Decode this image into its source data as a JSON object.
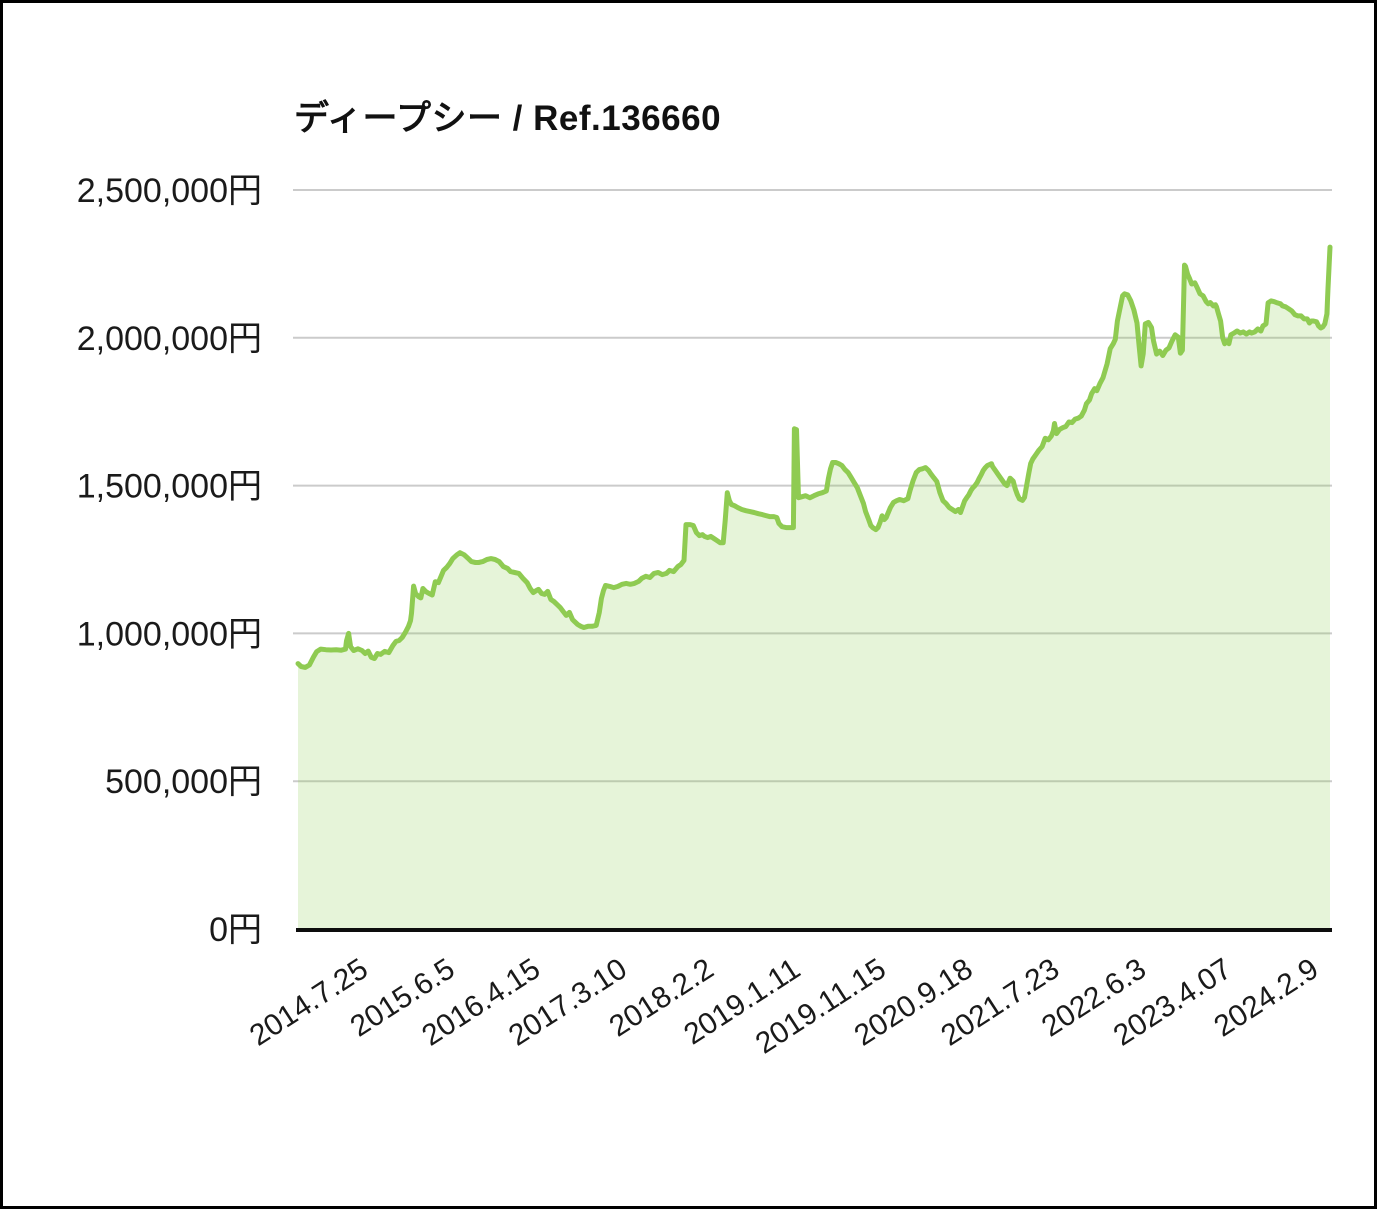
{
  "chart": {
    "title": "ディープシー / Ref.136660",
    "colors": {
      "line": "#8FCB52",
      "fill": "rgba(143,203,82,0.22)",
      "grid": "#CBCBCB",
      "axis": "#0D0D0D",
      "text": "#1A1A1A",
      "frame": "#000000",
      "background": "#FFFFFF"
    }
  },
  "chart_data": {
    "type": "area",
    "title": "ディープシー / Ref.136660",
    "unit": "JPY",
    "ylim": [
      0,
      2500000
    ],
    "grid": true,
    "legend": false,
    "y_ticks": [
      {
        "label": "2,500,000円",
        "value": 2500000
      },
      {
        "label": "2,000,000円",
        "value": 2000000
      },
      {
        "label": "1,500,000円",
        "value": 1500000
      },
      {
        "label": "1,000,000円",
        "value": 1000000
      },
      {
        "label": "500,000円",
        "value": 500000
      },
      {
        "label": "0円",
        "value": 0
      }
    ],
    "x_ticks": [
      {
        "label": "2014.7.25",
        "f": 0.062
      },
      {
        "label": "2015.6.5",
        "f": 0.146
      },
      {
        "label": "2016.4.15",
        "f": 0.229
      },
      {
        "label": "2017.3.10",
        "f": 0.313
      },
      {
        "label": "2018.2.2",
        "f": 0.397
      },
      {
        "label": "2019.1.11",
        "f": 0.481
      },
      {
        "label": "2019.11.15",
        "f": 0.564
      },
      {
        "label": "2020.9.18",
        "f": 0.648
      },
      {
        "label": "2021.7.23",
        "f": 0.732
      },
      {
        "label": "2022.6.3",
        "f": 0.816
      },
      {
        "label": "2023.4.07",
        "f": 0.899
      },
      {
        "label": "2024.2.9",
        "f": 0.983
      }
    ],
    "points_format": "[time_fraction_0_to_1, price_in_JPY]",
    "points": [
      [
        0.0,
        898000
      ],
      [
        0.003,
        888000
      ],
      [
        0.007,
        885000
      ],
      [
        0.011,
        893000
      ],
      [
        0.015,
        920000
      ],
      [
        0.018,
        938000
      ],
      [
        0.022,
        947000
      ],
      [
        0.027,
        945000
      ],
      [
        0.032,
        944000
      ],
      [
        0.037,
        945000
      ],
      [
        0.042,
        943000
      ],
      [
        0.046,
        947000
      ],
      [
        0.047,
        975000
      ],
      [
        0.049,
        1000000
      ],
      [
        0.051,
        955000
      ],
      [
        0.054,
        942000
      ],
      [
        0.058,
        948000
      ],
      [
        0.062,
        942000
      ],
      [
        0.065,
        932000
      ],
      [
        0.068,
        940000
      ],
      [
        0.071,
        919000
      ],
      [
        0.074,
        915000
      ],
      [
        0.077,
        932000
      ],
      [
        0.08,
        929000
      ],
      [
        0.084,
        939000
      ],
      [
        0.088,
        935000
      ],
      [
        0.092,
        959000
      ],
      [
        0.095,
        973000
      ],
      [
        0.098,
        976000
      ],
      [
        0.101,
        986000
      ],
      [
        0.104,
        1003000
      ],
      [
        0.107,
        1023000
      ],
      [
        0.109,
        1043000
      ],
      [
        0.11,
        1068000
      ],
      [
        0.112,
        1160000
      ],
      [
        0.114,
        1135000
      ],
      [
        0.117,
        1124000
      ],
      [
        0.119,
        1120000
      ],
      [
        0.121,
        1152000
      ],
      [
        0.124,
        1141000
      ],
      [
        0.127,
        1135000
      ],
      [
        0.13,
        1130000
      ],
      [
        0.133,
        1175000
      ],
      [
        0.136,
        1172000
      ],
      [
        0.139,
        1196000
      ],
      [
        0.141,
        1213000
      ],
      [
        0.144,
        1223000
      ],
      [
        0.147,
        1236000
      ],
      [
        0.15,
        1253000
      ],
      [
        0.154,
        1266000
      ],
      [
        0.157,
        1273000
      ],
      [
        0.161,
        1266000
      ],
      [
        0.165,
        1253000
      ],
      [
        0.168,
        1243000
      ],
      [
        0.172,
        1240000
      ],
      [
        0.175,
        1240000
      ],
      [
        0.179,
        1243000
      ],
      [
        0.183,
        1250000
      ],
      [
        0.187,
        1253000
      ],
      [
        0.191,
        1250000
      ],
      [
        0.195,
        1243000
      ],
      [
        0.199,
        1226000
      ],
      [
        0.203,
        1220000
      ],
      [
        0.206,
        1209000
      ],
      [
        0.21,
        1206000
      ],
      [
        0.214,
        1203000
      ],
      [
        0.218,
        1186000
      ],
      [
        0.222,
        1172000
      ],
      [
        0.225,
        1152000
      ],
      [
        0.228,
        1138000
      ],
      [
        0.231,
        1145000
      ],
      [
        0.233,
        1149000
      ],
      [
        0.236,
        1135000
      ],
      [
        0.239,
        1132000
      ],
      [
        0.242,
        1142000
      ],
      [
        0.245,
        1115000
      ],
      [
        0.248,
        1108000
      ],
      [
        0.251,
        1098000
      ],
      [
        0.254,
        1088000
      ],
      [
        0.257,
        1074000
      ],
      [
        0.26,
        1061000
      ],
      [
        0.263,
        1071000
      ],
      [
        0.266,
        1047000
      ],
      [
        0.268,
        1040000
      ],
      [
        0.271,
        1030000
      ],
      [
        0.274,
        1024000
      ],
      [
        0.277,
        1020000
      ],
      [
        0.281,
        1024000
      ],
      [
        0.285,
        1024000
      ],
      [
        0.289,
        1027000
      ],
      [
        0.292,
        1071000
      ],
      [
        0.294,
        1118000
      ],
      [
        0.296,
        1145000
      ],
      [
        0.298,
        1162000
      ],
      [
        0.302,
        1159000
      ],
      [
        0.306,
        1155000
      ],
      [
        0.31,
        1159000
      ],
      [
        0.314,
        1166000
      ],
      [
        0.318,
        1169000
      ],
      [
        0.322,
        1166000
      ],
      [
        0.326,
        1169000
      ],
      [
        0.33,
        1176000
      ],
      [
        0.333,
        1186000
      ],
      [
        0.337,
        1193000
      ],
      [
        0.341,
        1189000
      ],
      [
        0.345,
        1203000
      ],
      [
        0.349,
        1206000
      ],
      [
        0.353,
        1199000
      ],
      [
        0.357,
        1203000
      ],
      [
        0.36,
        1213000
      ],
      [
        0.364,
        1209000
      ],
      [
        0.368,
        1226000
      ],
      [
        0.371,
        1233000
      ],
      [
        0.374,
        1247000
      ],
      [
        0.376,
        1368000
      ],
      [
        0.38,
        1368000
      ],
      [
        0.383,
        1365000
      ],
      [
        0.386,
        1341000
      ],
      [
        0.389,
        1331000
      ],
      [
        0.392,
        1334000
      ],
      [
        0.394,
        1328000
      ],
      [
        0.397,
        1324000
      ],
      [
        0.4,
        1328000
      ],
      [
        0.403,
        1321000
      ],
      [
        0.406,
        1314000
      ],
      [
        0.409,
        1307000
      ],
      [
        0.412,
        1307000
      ],
      [
        0.414,
        1382000
      ],
      [
        0.416,
        1476000
      ],
      [
        0.418,
        1449000
      ],
      [
        0.42,
        1436000
      ],
      [
        0.423,
        1432000
      ],
      [
        0.426,
        1426000
      ],
      [
        0.43,
        1419000
      ],
      [
        0.434,
        1415000
      ],
      [
        0.438,
        1412000
      ],
      [
        0.442,
        1409000
      ],
      [
        0.446,
        1405000
      ],
      [
        0.45,
        1402000
      ],
      [
        0.453,
        1399000
      ],
      [
        0.457,
        1395000
      ],
      [
        0.461,
        1395000
      ],
      [
        0.464,
        1392000
      ],
      [
        0.466,
        1372000
      ],
      [
        0.469,
        1361000
      ],
      [
        0.473,
        1358000
      ],
      [
        0.477,
        1358000
      ],
      [
        0.48,
        1358000
      ],
      [
        0.481,
        1692000
      ],
      [
        0.483,
        1689000
      ],
      [
        0.485,
        1459000
      ],
      [
        0.488,
        1462000
      ],
      [
        0.492,
        1466000
      ],
      [
        0.496,
        1459000
      ],
      [
        0.5,
        1466000
      ],
      [
        0.504,
        1472000
      ],
      [
        0.508,
        1476000
      ],
      [
        0.512,
        1482000
      ],
      [
        0.514,
        1524000
      ],
      [
        0.516,
        1557000
      ],
      [
        0.518,
        1578000
      ],
      [
        0.521,
        1578000
      ],
      [
        0.524,
        1574000
      ],
      [
        0.527,
        1568000
      ],
      [
        0.53,
        1554000
      ],
      [
        0.533,
        1544000
      ],
      [
        0.536,
        1527000
      ],
      [
        0.539,
        1510000
      ],
      [
        0.542,
        1493000
      ],
      [
        0.545,
        1466000
      ],
      [
        0.548,
        1439000
      ],
      [
        0.55,
        1412000
      ],
      [
        0.553,
        1385000
      ],
      [
        0.555,
        1365000
      ],
      [
        0.557,
        1358000
      ],
      [
        0.56,
        1351000
      ],
      [
        0.562,
        1358000
      ],
      [
        0.564,
        1375000
      ],
      [
        0.566,
        1398000
      ],
      [
        0.568,
        1385000
      ],
      [
        0.57,
        1392000
      ],
      [
        0.572,
        1409000
      ],
      [
        0.574,
        1426000
      ],
      [
        0.577,
        1443000
      ],
      [
        0.58,
        1449000
      ],
      [
        0.583,
        1453000
      ],
      [
        0.587,
        1449000
      ],
      [
        0.591,
        1456000
      ],
      [
        0.593,
        1483000
      ],
      [
        0.596,
        1517000
      ],
      [
        0.599,
        1544000
      ],
      [
        0.602,
        1554000
      ],
      [
        0.605,
        1557000
      ],
      [
        0.608,
        1561000
      ],
      [
        0.611,
        1551000
      ],
      [
        0.613,
        1541000
      ],
      [
        0.616,
        1527000
      ],
      [
        0.619,
        1514000
      ],
      [
        0.622,
        1476000
      ],
      [
        0.625,
        1449000
      ],
      [
        0.628,
        1439000
      ],
      [
        0.631,
        1426000
      ],
      [
        0.634,
        1419000
      ],
      [
        0.637,
        1412000
      ],
      [
        0.64,
        1419000
      ],
      [
        0.642,
        1409000
      ],
      [
        0.644,
        1429000
      ],
      [
        0.646,
        1449000
      ],
      [
        0.648,
        1459000
      ],
      [
        0.65,
        1469000
      ],
      [
        0.652,
        1483000
      ],
      [
        0.654,
        1493000
      ],
      [
        0.656,
        1500000
      ],
      [
        0.658,
        1510000
      ],
      [
        0.66,
        1524000
      ],
      [
        0.662,
        1537000
      ],
      [
        0.664,
        1551000
      ],
      [
        0.666,
        1561000
      ],
      [
        0.668,
        1568000
      ],
      [
        0.67,
        1571000
      ],
      [
        0.672,
        1574000
      ],
      [
        0.673,
        1565000
      ],
      [
        0.676,
        1550000
      ],
      [
        0.679,
        1535000
      ],
      [
        0.682,
        1520000
      ],
      [
        0.685,
        1505000
      ],
      [
        0.687,
        1500000
      ],
      [
        0.69,
        1525000
      ],
      [
        0.693,
        1515000
      ],
      [
        0.695,
        1490000
      ],
      [
        0.697,
        1470000
      ],
      [
        0.699,
        1455000
      ],
      [
        0.702,
        1450000
      ],
      [
        0.704,
        1460000
      ],
      [
        0.706,
        1500000
      ],
      [
        0.708,
        1540000
      ],
      [
        0.71,
        1575000
      ],
      [
        0.712,
        1590000
      ],
      [
        0.715,
        1605000
      ],
      [
        0.718,
        1620000
      ],
      [
        0.721,
        1632000
      ],
      [
        0.724,
        1660000
      ],
      [
        0.727,
        1655000
      ],
      [
        0.73,
        1668000
      ],
      [
        0.732,
        1686000
      ],
      [
        0.733,
        1710000
      ],
      [
        0.735,
        1676000
      ],
      [
        0.738,
        1690000
      ],
      [
        0.741,
        1696000
      ],
      [
        0.744,
        1700000
      ],
      [
        0.747,
        1715000
      ],
      [
        0.75,
        1713000
      ],
      [
        0.753,
        1725000
      ],
      [
        0.756,
        1728000
      ],
      [
        0.759,
        1735000
      ],
      [
        0.762,
        1755000
      ],
      [
        0.764,
        1777000
      ],
      [
        0.767,
        1790000
      ],
      [
        0.769,
        1811000
      ],
      [
        0.772,
        1828000
      ],
      [
        0.774,
        1821000
      ],
      [
        0.777,
        1845000
      ],
      [
        0.78,
        1865000
      ],
      [
        0.784,
        1912000
      ],
      [
        0.787,
        1963000
      ],
      [
        0.79,
        1980000
      ],
      [
        0.792,
        1995000
      ],
      [
        0.794,
        2057000
      ],
      [
        0.797,
        2108000
      ],
      [
        0.799,
        2142000
      ],
      [
        0.801,
        2149000
      ],
      [
        0.804,
        2145000
      ],
      [
        0.807,
        2125000
      ],
      [
        0.81,
        2094000
      ],
      [
        0.813,
        2050000
      ],
      [
        0.815,
        1973000
      ],
      [
        0.817,
        1905000
      ],
      [
        0.819,
        1946000
      ],
      [
        0.821,
        2047000
      ],
      [
        0.824,
        2052000
      ],
      [
        0.827,
        2035000
      ],
      [
        0.829,
        1990000
      ],
      [
        0.832,
        1945000
      ],
      [
        0.835,
        1955000
      ],
      [
        0.838,
        1940000
      ],
      [
        0.841,
        1958000
      ],
      [
        0.844,
        1966000
      ],
      [
        0.847,
        1990000
      ],
      [
        0.85,
        2010000
      ],
      [
        0.853,
        2002000
      ],
      [
        0.855,
        1948000
      ],
      [
        0.857,
        1958000
      ],
      [
        0.859,
        2246000
      ],
      [
        0.86,
        2242000
      ],
      [
        0.862,
        2215000
      ],
      [
        0.864,
        2200000
      ],
      [
        0.866,
        2182000
      ],
      [
        0.869,
        2186000
      ],
      [
        0.871,
        2172000
      ],
      [
        0.874,
        2149000
      ],
      [
        0.877,
        2142000
      ],
      [
        0.88,
        2122000
      ],
      [
        0.882,
        2115000
      ],
      [
        0.884,
        2119000
      ],
      [
        0.887,
        2108000
      ],
      [
        0.889,
        2112000
      ],
      [
        0.89,
        2105000
      ],
      [
        0.892,
        2081000
      ],
      [
        0.894,
        2057000
      ],
      [
        0.896,
        2000000
      ],
      [
        0.898,
        1980000
      ],
      [
        0.9,
        1990000
      ],
      [
        0.902,
        1980000
      ],
      [
        0.904,
        2010000
      ],
      [
        0.907,
        2016000
      ],
      [
        0.91,
        2023000
      ],
      [
        0.913,
        2016000
      ],
      [
        0.916,
        2020000
      ],
      [
        0.919,
        2013000
      ],
      [
        0.922,
        2020000
      ],
      [
        0.924,
        2016000
      ],
      [
        0.927,
        2020000
      ],
      [
        0.93,
        2030000
      ],
      [
        0.933,
        2023000
      ],
      [
        0.935,
        2040000
      ],
      [
        0.938,
        2047000
      ],
      [
        0.94,
        2118000
      ],
      [
        0.943,
        2125000
      ],
      [
        0.946,
        2122000
      ],
      [
        0.949,
        2118000
      ],
      [
        0.952,
        2115000
      ],
      [
        0.954,
        2108000
      ],
      [
        0.957,
        2105000
      ],
      [
        0.96,
        2098000
      ],
      [
        0.963,
        2091000
      ],
      [
        0.966,
        2078000
      ],
      [
        0.969,
        2074000
      ],
      [
        0.972,
        2074000
      ],
      [
        0.975,
        2064000
      ],
      [
        0.978,
        2064000
      ],
      [
        0.98,
        2050000
      ],
      [
        0.982,
        2057000
      ],
      [
        0.984,
        2057000
      ],
      [
        0.987,
        2054000
      ],
      [
        0.989,
        2040000
      ],
      [
        0.991,
        2033000
      ],
      [
        0.993,
        2037000
      ],
      [
        0.995,
        2047000
      ],
      [
        0.997,
        2081000
      ],
      [
        0.998,
        2160000
      ],
      [
        1.0,
        2307000
      ]
    ]
  }
}
